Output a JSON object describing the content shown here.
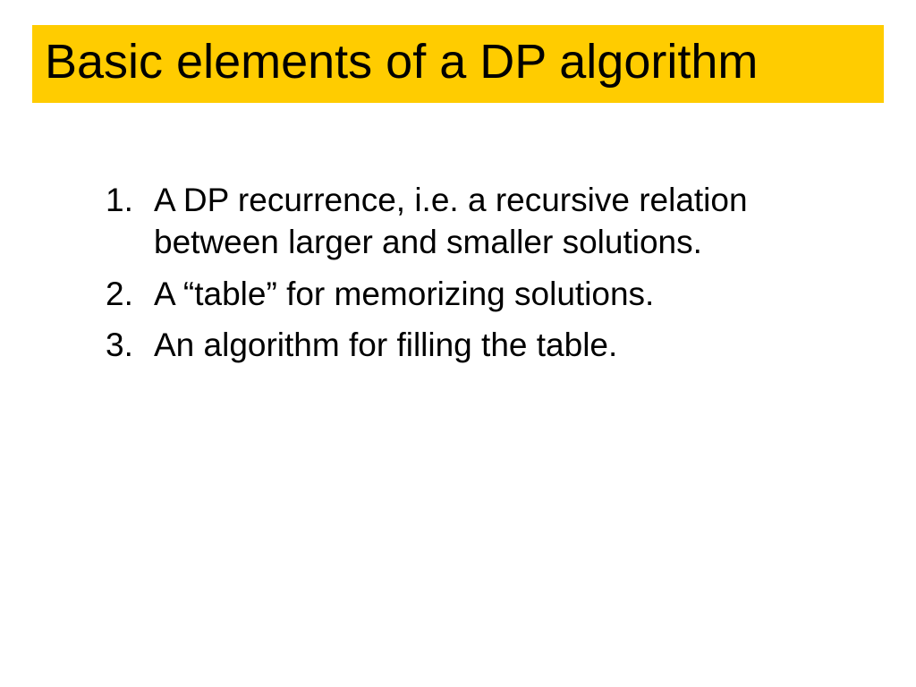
{
  "slide": {
    "title": "Basic elements of a DP algorithm",
    "title_bg_color": "#ffcc00",
    "title_text_color": "#000000",
    "title_fontsize": 54,
    "background_color": "#ffffff",
    "list": {
      "type": "ordered",
      "text_color": "#000000",
      "fontsize": 37,
      "items": [
        "A DP recurrence, i.e. a recursive relation between larger and smaller solutions.",
        "A “table” for memorizing solutions.",
        "An algorithm for filling the table."
      ]
    }
  }
}
